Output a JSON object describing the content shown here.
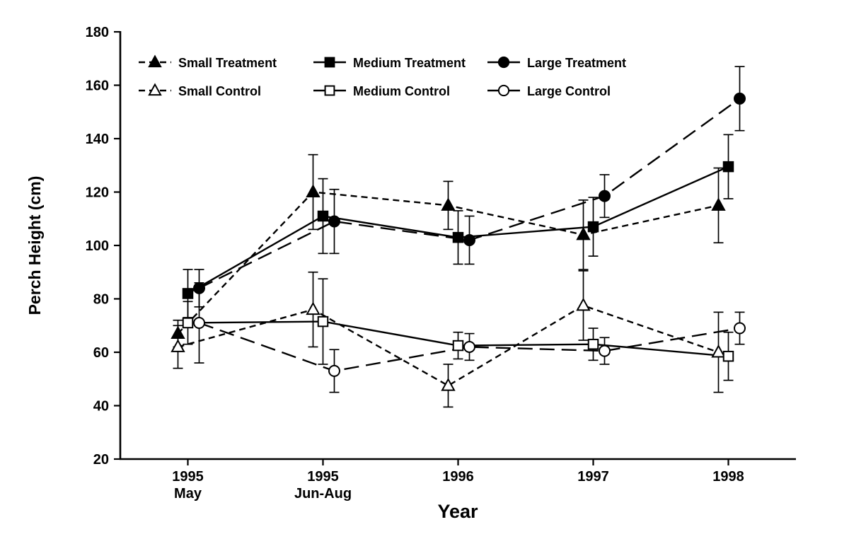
{
  "figure": {
    "background": "#ffffff",
    "ink": "#000000"
  },
  "chart_data": {
    "type": "line",
    "title": "",
    "xlabel": "Year",
    "ylabel": "Perch Height (cm)",
    "ylim": [
      20,
      180
    ],
    "ytick_step": 20,
    "grid": false,
    "legend_position": "top-left-inside",
    "error_bars": true,
    "categories": [
      "1995\nMay",
      "1995\nJun-Aug",
      "1996",
      "1997",
      "1998"
    ],
    "series": [
      {
        "name": "Small Treatment",
        "marker": "triangle",
        "marker_fill": "filled",
        "line_dash": "short",
        "x_offset": -14,
        "values": [
          67,
          120,
          115,
          104,
          115
        ],
        "errors": [
          5,
          14,
          9,
          13,
          14
        ]
      },
      {
        "name": "Medium Treatment",
        "marker": "square",
        "marker_fill": "filled",
        "line_dash": "solid",
        "x_offset": 0,
        "values": [
          82,
          111,
          103,
          107,
          129.5
        ],
        "errors": [
          9,
          14,
          10,
          11,
          12
        ]
      },
      {
        "name": "Large Treatment",
        "marker": "circle",
        "marker_fill": "filled",
        "line_dash": "long",
        "x_offset": 16,
        "values": [
          84,
          109,
          102,
          118.5,
          155
        ],
        "errors": [
          7,
          12,
          9,
          8,
          12
        ]
      },
      {
        "name": "Small Control",
        "marker": "triangle",
        "marker_fill": "open",
        "line_dash": "short",
        "x_offset": -14,
        "values": [
          62,
          76,
          47.5,
          77.5,
          60
        ],
        "errors": [
          8,
          14,
          8,
          13,
          15
        ]
      },
      {
        "name": "Medium Control",
        "marker": "square",
        "marker_fill": "open",
        "line_dash": "solid",
        "x_offset": 0,
        "values": [
          71,
          71.5,
          62.5,
          63,
          58.5
        ],
        "errors": [
          8,
          16,
          5,
          6,
          9
        ]
      },
      {
        "name": "Large Control",
        "marker": "circle",
        "marker_fill": "open",
        "line_dash": "long",
        "x_offset": 16,
        "values": [
          71,
          53,
          62,
          60.5,
          69
        ],
        "errors": [
          15,
          8,
          5,
          5,
          6
        ]
      }
    ]
  }
}
